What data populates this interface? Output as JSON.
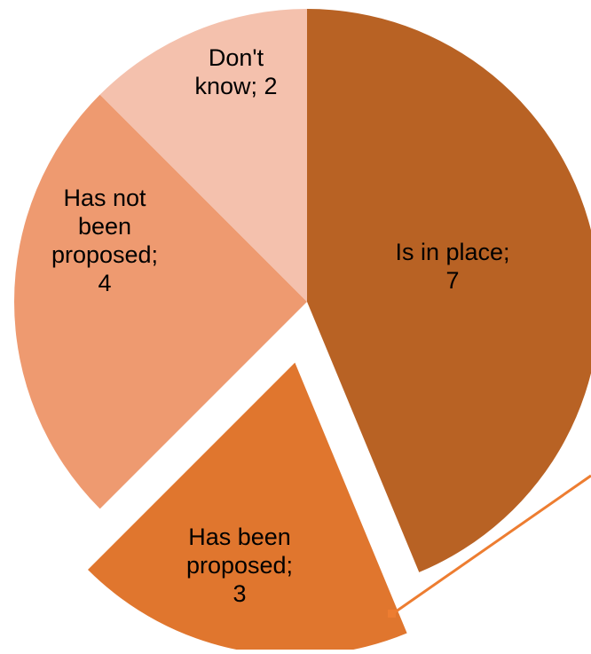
{
  "chart_data": {
    "type": "pie",
    "title": "",
    "slices": [
      {
        "category": "Is in place",
        "value": 7,
        "label_lines": [
          "Is in place;",
          "7"
        ],
        "color": "#B86224",
        "exploded": false
      },
      {
        "category": "Has been proposed",
        "value": 3,
        "label_lines": [
          "Has been",
          "proposed;",
          "3"
        ],
        "color": "#E0762E",
        "exploded": true
      },
      {
        "category": "Has not been proposed",
        "value": 4,
        "label_lines": [
          "Has not",
          "been",
          "proposed;",
          "4"
        ],
        "color": "#EE9A70",
        "exploded": false
      },
      {
        "category": "Don't know",
        "value": 2,
        "label_lines": [
          "Don't",
          "know; 2"
        ],
        "color": "#F4C1AD",
        "exploded": false
      }
    ],
    "leader_line_color": "#ED7D31",
    "legend": "none"
  }
}
